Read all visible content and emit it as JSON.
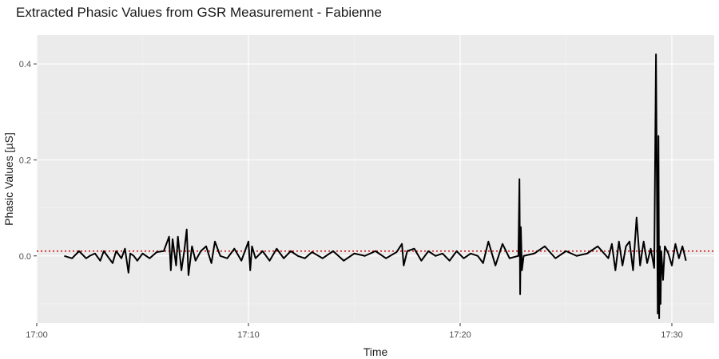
{
  "chart_data": {
    "type": "line",
    "title": "Extracted Phasic Values from GSR Measurement - Fabienne",
    "xlabel": "Time",
    "ylabel": "Phasic Values [µS]",
    "xlim": [
      "17:00",
      "17:32"
    ],
    "ylim": [
      -0.14,
      0.46
    ],
    "x_ticks": [
      "17:00",
      "17:10",
      "17:20",
      "17:30"
    ],
    "y_ticks": [
      0.0,
      0.2,
      0.4
    ],
    "y_tick_labels": [
      "0.0",
      "0.2",
      "0.4"
    ],
    "grid": true,
    "background": "#EBEBEB",
    "series": [
      {
        "color": "#000000",
        "x": [
          "17:01:18",
          "17:01:40",
          "17:02:00",
          "17:02:20",
          "17:02:30",
          "17:02:45",
          "17:03:00",
          "17:03:10",
          "17:03:20",
          "17:03:35",
          "17:03:45",
          "17:04:00",
          "17:04:10",
          "17:04:20",
          "17:04:25",
          "17:04:35",
          "17:04:45",
          "17:05:00",
          "17:05:20",
          "17:05:40",
          "17:06:00",
          "17:06:15",
          "17:06:20",
          "17:06:25",
          "17:06:35",
          "17:06:40",
          "17:06:50",
          "17:06:58",
          "17:07:05",
          "17:07:10",
          "17:07:20",
          "17:07:30",
          "17:07:45",
          "17:08:00",
          "17:08:15",
          "17:08:25",
          "17:08:40",
          "17:09:00",
          "17:09:20",
          "17:09:40",
          "17:10:00",
          "17:10:05",
          "17:10:10",
          "17:10:20",
          "17:10:40",
          "17:11:00",
          "17:11:20",
          "17:11:40",
          "17:12:00",
          "17:12:20",
          "17:12:40",
          "17:13:00",
          "17:13:30",
          "17:14:00",
          "17:14:30",
          "17:15:00",
          "17:15:30",
          "17:16:00",
          "17:16:30",
          "17:17:00",
          "17:17:15",
          "17:17:20",
          "17:17:30",
          "17:17:50",
          "17:18:10",
          "17:18:30",
          "17:18:50",
          "17:19:10",
          "17:19:30",
          "17:19:50",
          "17:20:10",
          "17:20:30",
          "17:20:50",
          "17:21:05",
          "17:21:20",
          "17:21:40",
          "17:22:00",
          "17:22:20",
          "17:22:45",
          "17:22:48",
          "17:22:50",
          "17:22:52",
          "17:22:55",
          "17:23:00",
          "17:23:30",
          "17:24:00",
          "17:24:30",
          "17:25:00",
          "17:25:30",
          "17:26:00",
          "17:26:30",
          "17:27:00",
          "17:27:10",
          "17:27:20",
          "17:27:30",
          "17:27:40",
          "17:27:50",
          "17:28:00",
          "17:28:10",
          "17:28:20",
          "17:28:30",
          "17:28:40",
          "17:28:50",
          "17:29:00",
          "17:29:10",
          "17:29:15",
          "17:29:20",
          "17:29:22",
          "17:29:24",
          "17:29:26",
          "17:29:28",
          "17:29:30",
          "17:29:35",
          "17:29:40",
          "17:29:50",
          "17:30:00",
          "17:30:10",
          "17:30:20",
          "17:30:30",
          "17:30:40"
        ],
        "values": [
          0.0,
          -0.005,
          0.01,
          -0.005,
          0.0,
          0.005,
          -0.01,
          0.01,
          0.0,
          -0.015,
          0.01,
          -0.005,
          0.015,
          -0.035,
          0.005,
          0.0,
          -0.01,
          0.005,
          -0.005,
          0.008,
          0.01,
          0.04,
          -0.03,
          0.035,
          -0.02,
          0.04,
          -0.03,
          0.01,
          0.055,
          -0.04,
          0.02,
          -0.01,
          0.01,
          0.02,
          -0.015,
          0.03,
          0.0,
          -0.005,
          0.015,
          -0.01,
          0.03,
          -0.03,
          0.02,
          -0.005,
          0.01,
          -0.01,
          0.015,
          -0.005,
          0.01,
          0.0,
          -0.005,
          0.008,
          -0.005,
          0.01,
          -0.01,
          0.005,
          0.0,
          0.01,
          -0.005,
          0.008,
          0.025,
          -0.02,
          0.01,
          0.015,
          -0.01,
          0.01,
          0.0,
          0.005,
          -0.01,
          0.01,
          -0.005,
          0.005,
          0.0,
          -0.015,
          0.03,
          -0.02,
          0.025,
          -0.005,
          0.0,
          0.16,
          -0.08,
          0.06,
          -0.03,
          0.0,
          0.005,
          0.02,
          -0.005,
          0.01,
          0.0,
          0.005,
          0.02,
          -0.005,
          0.025,
          -0.03,
          0.03,
          -0.02,
          0.02,
          0.03,
          -0.03,
          0.08,
          -0.02,
          0.03,
          -0.015,
          0.015,
          -0.025,
          0.42,
          -0.12,
          0.25,
          -0.13,
          0.02,
          -0.1,
          0.01,
          -0.05,
          0.02,
          0.005,
          -0.02,
          0.025,
          -0.005,
          0.02,
          -0.01
        ],
        "line_width": 2
      }
    ],
    "threshold_line": {
      "value": 0.01,
      "color": "#CC0000",
      "style": "dotted"
    }
  }
}
